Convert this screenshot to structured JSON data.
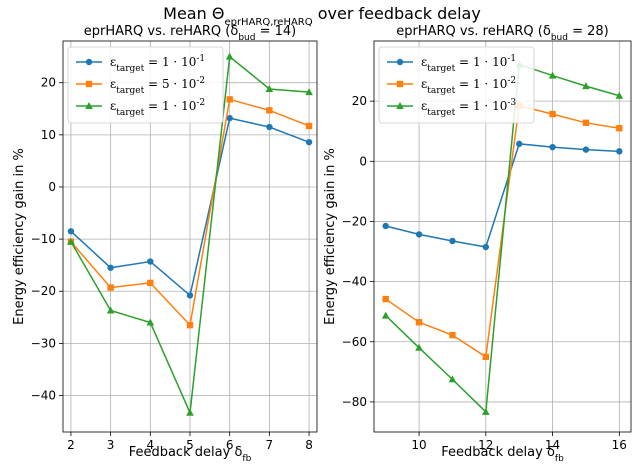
{
  "suptitle": "Mean Θ_eprHARQ,reHARQ over feedback delay",
  "chart_data": [
    {
      "type": "line",
      "title": "eprHARQ vs. reHARQ (δ_bud = 14)",
      "xlabel": "Feedback delay δ_fb",
      "ylabel": "Energy efficiency gain in %",
      "xlim": [
        1.8,
        8.2
      ],
      "ylim": [
        -47,
        28
      ],
      "xticks": [
        2,
        3,
        4,
        5,
        6,
        7,
        8
      ],
      "yticks": [
        -40,
        -30,
        -20,
        -10,
        0,
        10,
        20
      ],
      "grid": true,
      "legend_position": "top-left",
      "x": [
        2,
        3,
        4,
        5,
        6,
        7,
        8
      ],
      "series": [
        {
          "name": "ε_target = 1 · 10^-1",
          "color": "#1f77b4",
          "marker": "circle",
          "values": [
            -8.5,
            -15.5,
            -14.3,
            -20.8,
            13.2,
            11.5,
            8.6
          ]
        },
        {
          "name": "ε_target = 5 · 10^-2",
          "color": "#ff7f0e",
          "marker": "square",
          "values": [
            -10.5,
            -19.3,
            -18.4,
            -26.5,
            16.8,
            14.7,
            11.7
          ]
        },
        {
          "name": "ε_target = 1 · 10^-2",
          "color": "#2ca02c",
          "marker": "triangle",
          "values": [
            -10.5,
            -23.7,
            -26.0,
            -43.3,
            25.0,
            18.8,
            18.2
          ]
        }
      ]
    },
    {
      "type": "line",
      "title": "eprHARQ vs. reHARQ (δ_bud = 28)",
      "xlabel": "Feedback delay δ_fb",
      "ylabel": "Energy efficiency gain in %",
      "xlim": [
        8.65,
        16.35
      ],
      "ylim": [
        -90,
        40
      ],
      "xticks": [
        10,
        12,
        14,
        16
      ],
      "yticks": [
        -80,
        -60,
        -40,
        -20,
        0,
        20
      ],
      "grid": true,
      "legend_position": "top-left",
      "x": [
        9,
        10,
        11,
        12,
        13,
        14,
        15,
        16
      ],
      "series": [
        {
          "name": "ε_target = 1 · 10^-1",
          "color": "#1f77b4",
          "marker": "circle",
          "values": [
            -21.5,
            -24.3,
            -26.5,
            -28.5,
            5.8,
            4.7,
            3.9,
            3.3
          ]
        },
        {
          "name": "ε_target = 1 · 10^-2",
          "color": "#ff7f0e",
          "marker": "square",
          "values": [
            -45.8,
            -53.5,
            -57.8,
            -65.0,
            18.5,
            15.7,
            12.8,
            11.0
          ]
        },
        {
          "name": "ε_target = 1 · 10^-3",
          "color": "#2ca02c",
          "marker": "triangle",
          "values": [
            -51.3,
            -62.0,
            -72.5,
            -83.3,
            32.2,
            28.5,
            25.0,
            21.8
          ]
        }
      ]
    }
  ]
}
